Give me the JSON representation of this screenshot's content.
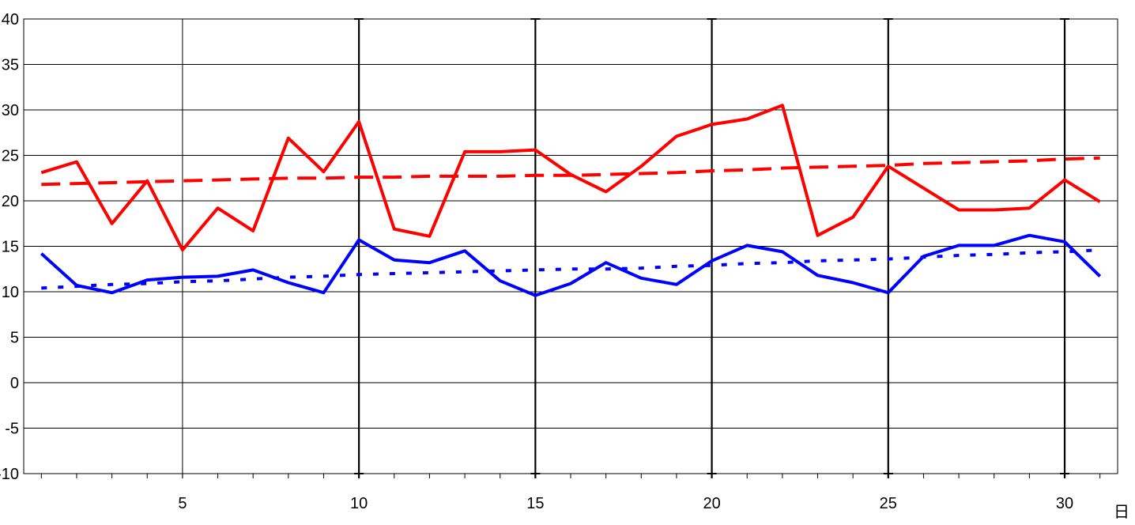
{
  "chart_data": {
    "type": "line",
    "x_unit_label": "日",
    "xlim": [
      1,
      31
    ],
    "ylim": [
      -10,
      40
    ],
    "x_ticks": [
      5,
      10,
      15,
      20,
      25,
      30
    ],
    "y_ticks": [
      -10,
      -5,
      0,
      5,
      10,
      15,
      20,
      25,
      30,
      35,
      40
    ],
    "grid": true,
    "legend": "none",
    "x": [
      1,
      2,
      3,
      4,
      5,
      6,
      7,
      8,
      9,
      10,
      11,
      12,
      13,
      14,
      15,
      16,
      17,
      18,
      19,
      20,
      21,
      22,
      23,
      24,
      25,
      26,
      27,
      28,
      29,
      30,
      31
    ],
    "series": [
      {
        "color": "#ff0000",
        "style": "solid",
        "values": [
          23.1,
          24.3,
          17.5,
          22.2,
          14.6,
          19.2,
          16.7,
          26.9,
          23.2,
          28.7,
          16.9,
          16.1,
          25.4,
          25.4,
          25.6,
          22.9,
          21.0,
          23.8,
          27.1,
          28.4,
          29.0,
          30.5,
          16.2,
          18.2,
          23.8,
          21.4,
          19.0,
          19.0,
          19.2,
          22.3,
          19.9
        ]
      },
      {
        "color": "#ff0000",
        "style": "dashed",
        "values": [
          21.8,
          21.9,
          22.0,
          22.1,
          22.2,
          22.3,
          22.4,
          22.5,
          22.5,
          22.6,
          22.6,
          22.7,
          22.7,
          22.7,
          22.8,
          22.8,
          22.9,
          23.0,
          23.1,
          23.3,
          23.4,
          23.6,
          23.7,
          23.8,
          23.9,
          24.1,
          24.2,
          24.3,
          24.4,
          24.6,
          24.7
        ]
      },
      {
        "color": "#0000ff",
        "style": "solid",
        "values": [
          14.2,
          10.7,
          9.9,
          11.3,
          11.6,
          11.7,
          12.4,
          11.0,
          9.9,
          15.7,
          13.5,
          13.2,
          14.5,
          11.2,
          9.6,
          10.9,
          13.2,
          11.5,
          10.8,
          13.4,
          15.1,
          14.4,
          11.8,
          11.0,
          9.9,
          13.9,
          15.1,
          15.1,
          16.2,
          15.5,
          11.7
        ]
      },
      {
        "color": "#0000ff",
        "style": "dotted",
        "values": [
          10.4,
          10.6,
          10.8,
          10.9,
          11.1,
          11.2,
          11.4,
          11.6,
          11.7,
          11.9,
          12.0,
          12.1,
          12.2,
          12.3,
          12.4,
          12.5,
          12.5,
          12.6,
          12.8,
          12.9,
          13.1,
          13.2,
          13.4,
          13.5,
          13.6,
          13.8,
          14.0,
          14.1,
          14.3,
          14.4,
          14.6
        ]
      }
    ]
  }
}
